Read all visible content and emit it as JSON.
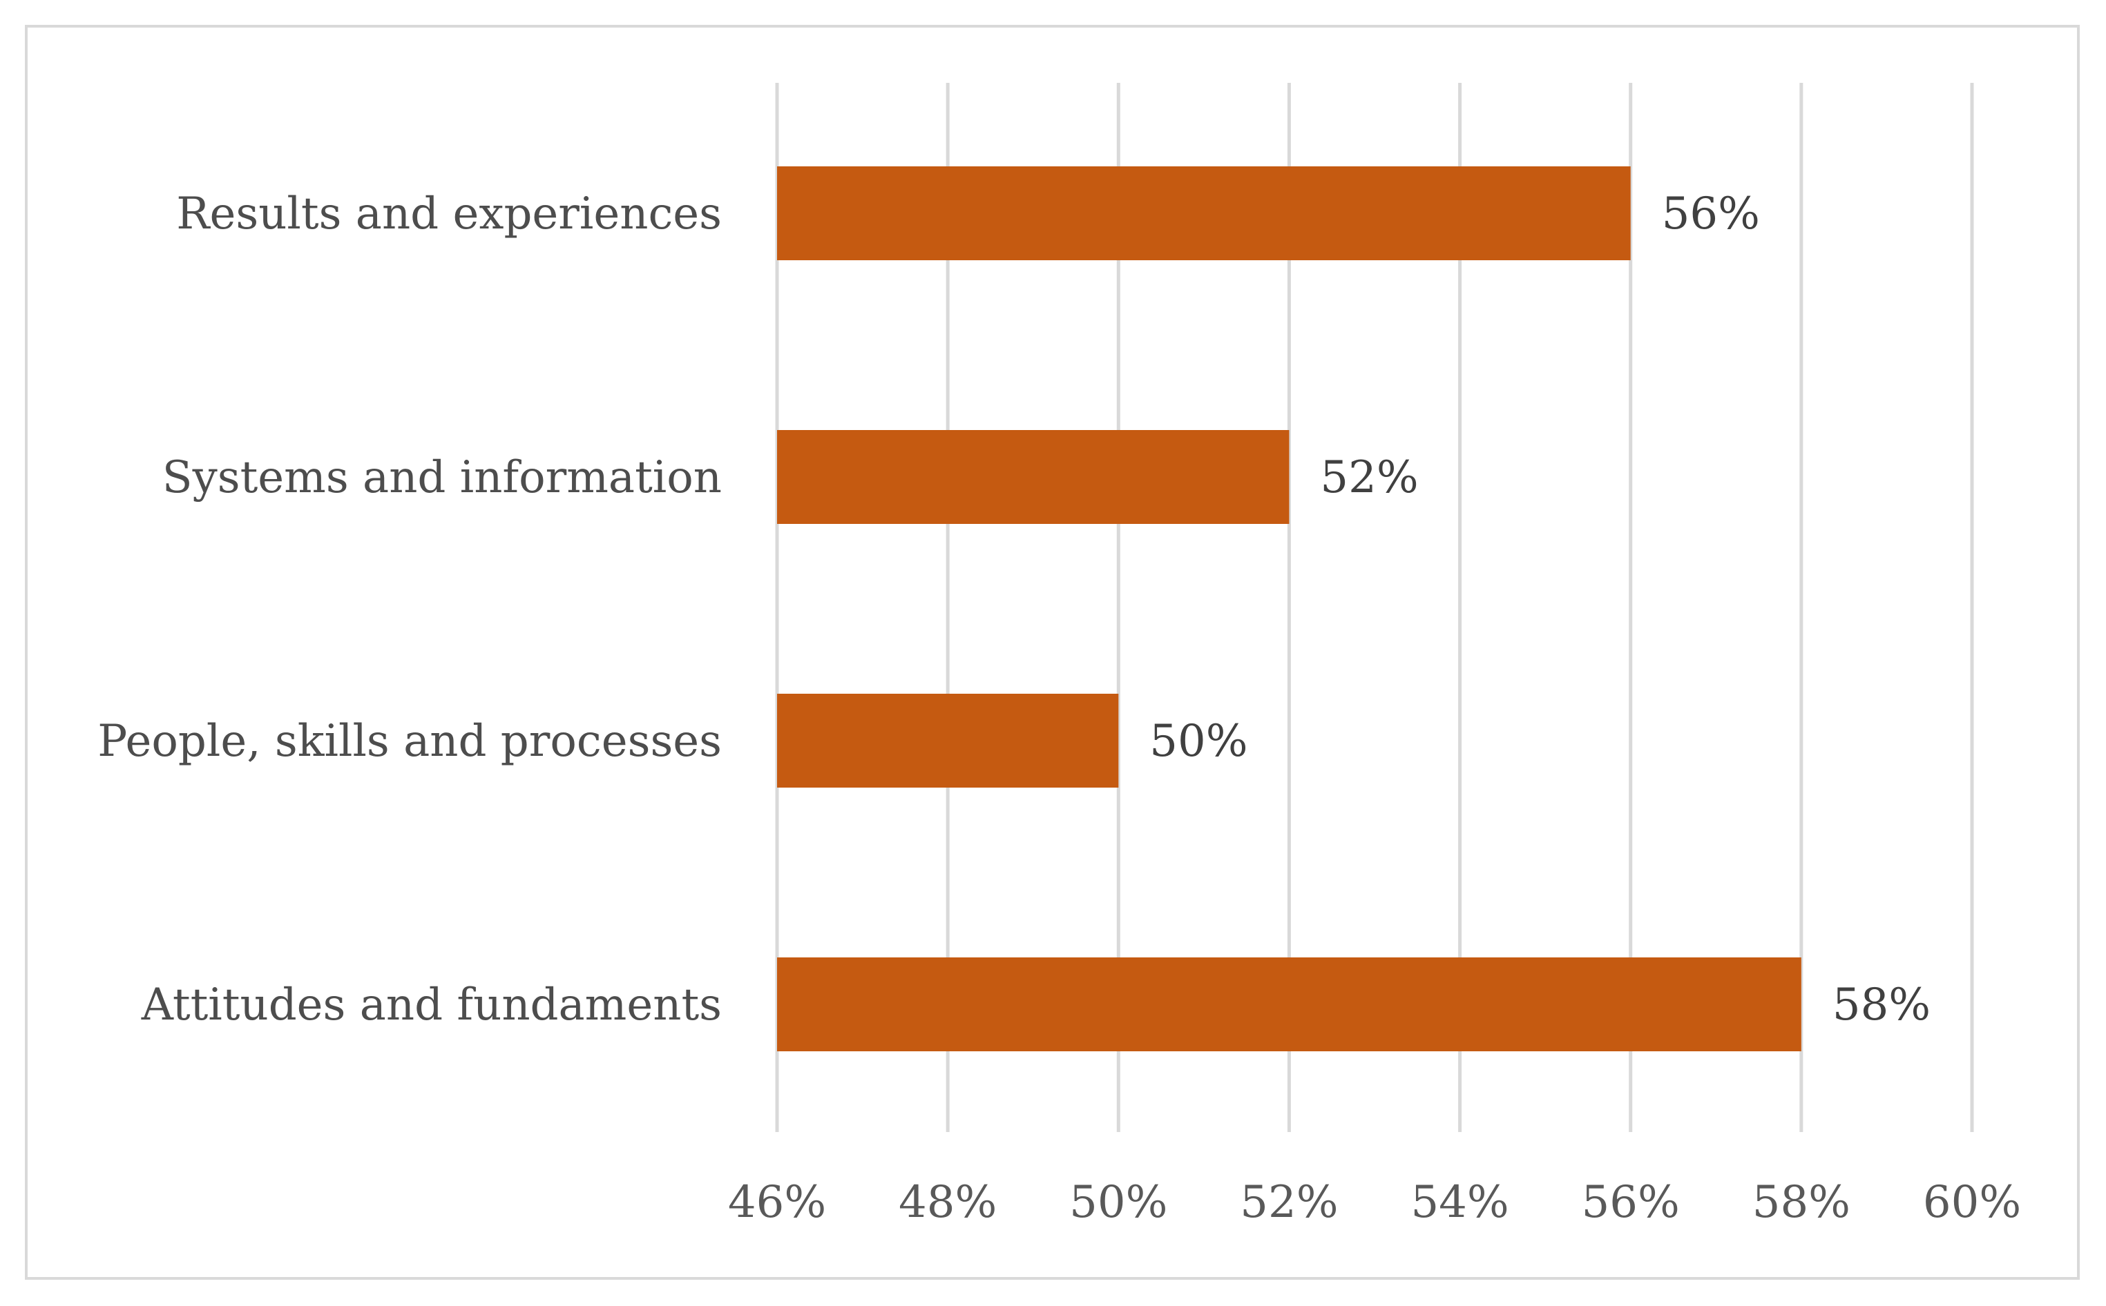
{
  "chart_data": {
    "type": "bar",
    "orientation": "horizontal",
    "title": "",
    "xlabel": "",
    "ylabel": "",
    "categories": [
      "Results and experiences",
      "Systems and information",
      "People, skills and processes",
      "Attitudes and fundaments"
    ],
    "values": [
      56,
      52,
      50,
      58
    ],
    "value_labels": [
      "56%",
      "52%",
      "50%",
      "58%"
    ],
    "xlim": [
      46,
      60
    ],
    "x_ticks": [
      46,
      48,
      50,
      52,
      54,
      56,
      58,
      60
    ],
    "x_tick_labels": [
      "46%",
      "48%",
      "50%",
      "52%",
      "54%",
      "56%",
      "58%",
      "60%"
    ],
    "grid": true,
    "legend": "none"
  },
  "colors": {
    "bar": "#c55a11",
    "grid": "#d9d9d9",
    "frame": "#d9d9d9"
  }
}
